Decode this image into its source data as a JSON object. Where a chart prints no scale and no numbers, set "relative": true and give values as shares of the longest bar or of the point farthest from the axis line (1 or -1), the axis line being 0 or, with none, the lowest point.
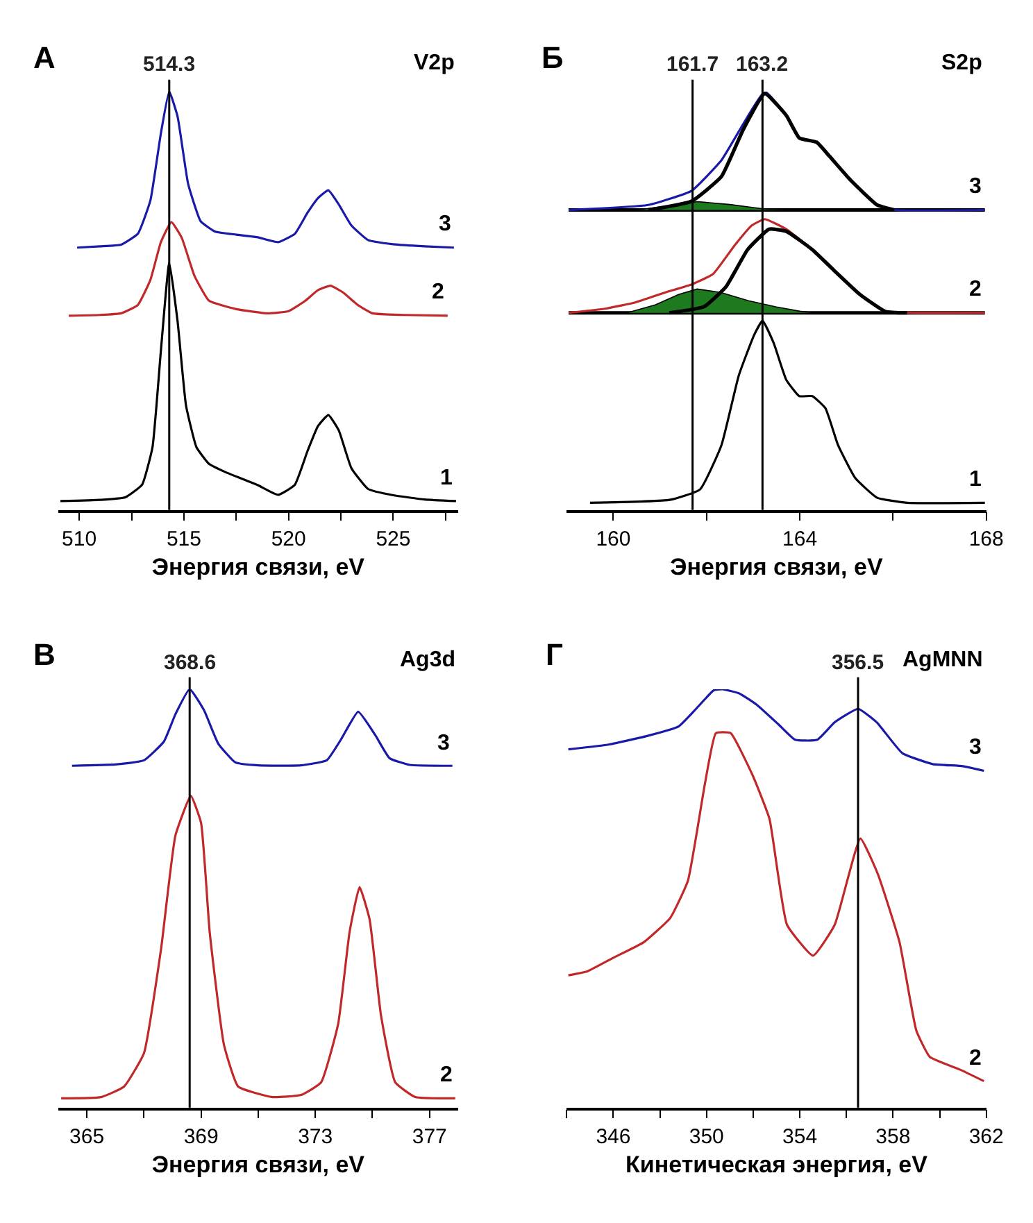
{
  "chart_data": [
    {
      "type": "line",
      "title": "А",
      "subtitle": "V2p",
      "xlabel": "Энергия связи, eV",
      "relative": true,
      "xlim": [
        509,
        528.1
      ],
      "xticks": [
        510,
        {
          "value": 512.5,
          "label": null
        },
        515,
        {
          "value": 517.5,
          "label": null
        },
        520,
        {
          "value": 522.5,
          "label": null
        },
        525,
        {
          "value": 527.5,
          "label": null
        }
      ],
      "ref_lines": [
        {
          "axis": "x",
          "value": 514.3,
          "label": "514.3",
          "color": "#000000"
        }
      ],
      "series": [
        {
          "name": "3",
          "color": "#1a1aa8",
          "x": [
            509.9,
            511,
            512,
            512.8,
            513.4,
            513.9,
            514.3,
            514.7,
            515.2,
            515.8,
            516.5,
            517.5,
            518.5,
            519.5,
            520.3,
            520.9,
            521.4,
            521.9,
            522.4,
            523,
            523.8,
            525,
            526.5,
            527.9
          ],
          "values": [
            0.627,
            0.63,
            0.634,
            0.66,
            0.74,
            0.9,
            1.0,
            0.94,
            0.78,
            0.69,
            0.665,
            0.658,
            0.652,
            0.64,
            0.66,
            0.71,
            0.745,
            0.764,
            0.73,
            0.68,
            0.645,
            0.635,
            0.63,
            0.627
          ]
        },
        {
          "name": "2",
          "color": "#c0282a",
          "x": [
            509.5,
            511,
            512,
            512.8,
            513.4,
            513.9,
            514.4,
            514.9,
            515.5,
            516.2,
            517.5,
            519,
            520,
            520.8,
            521.4,
            522,
            522.6,
            523.3,
            524,
            525.5,
            527.6
          ],
          "values": [
            0.464,
            0.466,
            0.47,
            0.49,
            0.55,
            0.64,
            0.688,
            0.65,
            0.56,
            0.5,
            0.48,
            0.47,
            0.475,
            0.5,
            0.525,
            0.536,
            0.52,
            0.49,
            0.47,
            0.466,
            0.464
          ]
        },
        {
          "name": "1",
          "color": "#000000",
          "x": [
            509.1,
            511,
            512.2,
            513,
            513.5,
            513.9,
            514.3,
            514.7,
            515.1,
            515.6,
            516.2,
            517,
            518.5,
            519.5,
            520.3,
            520.9,
            521.4,
            521.9,
            522.4,
            523,
            523.8,
            525,
            526.5,
            528
          ],
          "values": [
            0.021,
            0.024,
            0.03,
            0.06,
            0.15,
            0.38,
            0.591,
            0.45,
            0.25,
            0.15,
            0.11,
            0.09,
            0.06,
            0.036,
            0.06,
            0.14,
            0.2,
            0.227,
            0.19,
            0.1,
            0.05,
            0.035,
            0.025,
            0.021
          ]
        }
      ]
    },
    {
      "type": "line",
      "title": "Б",
      "subtitle": "S2p",
      "xlabel": "Энергия связи, eV",
      "relative": true,
      "xlim": [
        159,
        168
      ],
      "xticks": [
        160,
        {
          "value": 162,
          "label": null
        },
        164,
        {
          "value": 166,
          "label": null
        },
        168
      ],
      "ref_lines": [
        {
          "axis": "x",
          "value": 161.7,
          "label": "161.7",
          "color": "#000000"
        },
        {
          "axis": "x",
          "value": 163.2,
          "label": "163.2",
          "color": "#000000"
        }
      ],
      "series": [
        {
          "color": "#000000",
          "x": [
            159.04,
            167.97
          ],
          "values": [
            0.717,
            0.717
          ]
        },
        {
          "type": "area",
          "color": "#1e7a1e",
          "x": [
            160.5,
            161.2,
            161.8,
            162.5,
            163.2,
            163.8
          ],
          "values": [
            0.717,
            0.727,
            0.737,
            0.73,
            0.72,
            0.717
          ]
        },
        {
          "name": "3",
          "color": "#1a1aa8",
          "x": [
            159.04,
            160.75,
            161.68,
            162.32,
            162.79,
            163.25,
            163.71,
            163.99,
            164.36,
            164.64,
            165.1,
            165.66,
            166.03,
            167.97
          ],
          "values": [
            0.717,
            0.729,
            0.763,
            0.836,
            0.923,
            1.0,
            0.943,
            0.889,
            0.879,
            0.845,
            0.787,
            0.729,
            0.717,
            0.717
          ]
        },
        {
          "color": "#000000",
          "x": [
            160.75,
            161.68,
            162.32,
            162.79,
            163.25,
            163.71,
            163.99,
            164.36,
            164.64,
            165.1,
            165.66,
            166.03
          ],
          "values": [
            0.717,
            0.738,
            0.797,
            0.91,
            0.995,
            0.943,
            0.889,
            0.879,
            0.845,
            0.787,
            0.729,
            0.717
          ]
        },
        {
          "color": "#000000",
          "x": [
            159.04,
            167.97
          ],
          "values": [
            0.471,
            0.471
          ]
        },
        {
          "type": "area",
          "color": "#1e7a1e",
          "x": [
            160.29,
            160.9,
            161.4,
            161.8,
            162.3,
            162.9,
            163.5,
            164.0,
            164.3
          ],
          "values": [
            0.471,
            0.49,
            0.515,
            0.528,
            0.52,
            0.5,
            0.485,
            0.475,
            0.471
          ]
        },
        {
          "name": "2",
          "color": "#c0282a",
          "x": [
            159.04,
            159.83,
            160.47,
            161.12,
            161.68,
            162.14,
            162.6,
            162.97,
            163.25,
            163.71,
            164.27,
            164.73,
            165.29,
            165.84,
            166.3,
            167.97
          ],
          "values": [
            0.471,
            0.481,
            0.496,
            0.52,
            0.539,
            0.564,
            0.632,
            0.68,
            0.695,
            0.671,
            0.622,
            0.573,
            0.515,
            0.474,
            0.471,
            0.471
          ]
        },
        {
          "color": "#000000",
          "x": [
            161.2,
            161.95,
            162.42,
            162.88,
            163.34,
            163.71,
            164.27,
            164.73,
            165.29,
            165.84,
            166.3
          ],
          "values": [
            0.471,
            0.486,
            0.534,
            0.622,
            0.671,
            0.666,
            0.622,
            0.573,
            0.515,
            0.474,
            0.471
          ]
        },
        {
          "name": "1",
          "color": "#000000",
          "x": [
            159.5,
            161.21,
            161.86,
            162.32,
            162.69,
            163.02,
            163.2,
            163.44,
            163.71,
            163.99,
            164.27,
            164.55,
            164.82,
            165.19,
            165.66,
            166.3,
            167.97
          ],
          "values": [
            0.017,
            0.024,
            0.049,
            0.155,
            0.321,
            0.418,
            0.452,
            0.399,
            0.311,
            0.272,
            0.272,
            0.243,
            0.155,
            0.076,
            0.029,
            0.017,
            0.017
          ]
        }
      ]
    },
    {
      "type": "line",
      "title": "В",
      "subtitle": "Ag3d",
      "xlabel": "Энергия связи, eV",
      "relative": true,
      "xlim": [
        364,
        378
      ],
      "xticks": [
        365,
        {
          "value": 367,
          "label": null
        },
        369,
        {
          "value": 371,
          "label": null
        },
        373,
        {
          "value": 375,
          "label": null
        },
        377
      ],
      "ref_lines": [
        {
          "axis": "x",
          "value": 368.6,
          "label": "368.6",
          "color": "#000000"
        }
      ],
      "series": [
        {
          "name": "3",
          "color": "#1a1aa8",
          "x": [
            364.48,
            366,
            367,
            367.7,
            368.1,
            368.6,
            369.1,
            369.6,
            370.2,
            371,
            372.5,
            373.4,
            373.9,
            374.5,
            375.1,
            375.6,
            376.3,
            377.8
          ],
          "values": [
            0.817,
            0.82,
            0.83,
            0.875,
            0.94,
            1.0,
            0.95,
            0.87,
            0.825,
            0.818,
            0.818,
            0.83,
            0.88,
            0.946,
            0.89,
            0.835,
            0.819,
            0.817
          ]
        },
        {
          "name": "2",
          "color": "#c0282a",
          "x": [
            364.1,
            365.5,
            366.3,
            367,
            367.6,
            368.1,
            368.64,
            369.0,
            369.3,
            369.8,
            370.3,
            371.5,
            372.5,
            373.2,
            373.8,
            374.2,
            374.55,
            374.9,
            375.3,
            375.8,
            376.5,
            377.9
          ],
          "values": [
            0.022,
            0.025,
            0.05,
            0.13,
            0.38,
            0.65,
            0.745,
            0.68,
            0.42,
            0.15,
            0.05,
            0.025,
            0.03,
            0.06,
            0.2,
            0.42,
            0.527,
            0.45,
            0.22,
            0.06,
            0.025,
            0.022
          ]
        }
      ]
    },
    {
      "type": "line",
      "title": "Г",
      "subtitle": "AgMNN",
      "xlabel": "Кинетическая энергия, eV",
      "relative": true,
      "xlim": [
        344,
        362
      ],
      "xticks": [
        {
          "value": 344,
          "label": null
        },
        346,
        {
          "value": 348,
          "label": null
        },
        350,
        {
          "value": 352,
          "label": null
        },
        354,
        {
          "value": 356,
          "label": null
        },
        358,
        {
          "value": 360,
          "label": null
        },
        362
      ],
      "ref_lines": [
        {
          "axis": "x",
          "value": 356.5,
          "label": "356.5",
          "color": "#000000"
        }
      ],
      "series": [
        {
          "name": "3",
          "color": "#1a1aa8",
          "x": [
            344.07,
            345.83,
            347.5,
            348.8,
            349.55,
            350.3,
            350.67,
            351.4,
            352.15,
            353.08,
            353.8,
            354.75,
            355.5,
            356.5,
            357.3,
            358.4,
            359.7,
            361.0,
            361.9
          ],
          "values": [
            0.856,
            0.868,
            0.889,
            0.911,
            0.953,
            0.997,
            1.0,
            0.99,
            0.963,
            0.916,
            0.879,
            0.879,
            0.921,
            0.953,
            0.921,
            0.847,
            0.821,
            0.816,
            0.805
          ]
        },
        {
          "name": "2",
          "color": "#c0282a",
          "x": [
            344.07,
            344.9,
            346.0,
            347.3,
            348.44,
            349.2,
            349.93,
            350.4,
            351.03,
            351.97,
            352.7,
            353.45,
            354.57,
            355.5,
            356.6,
            357.35,
            358.28,
            359.0,
            359.58,
            360.9,
            361.9
          ],
          "values": [
            0.316,
            0.326,
            0.358,
            0.395,
            0.453,
            0.542,
            0.774,
            0.895,
            0.895,
            0.795,
            0.69,
            0.437,
            0.363,
            0.437,
            0.643,
            0.558,
            0.395,
            0.184,
            0.121,
            0.09,
            0.063
          ]
        }
      ]
    }
  ]
}
